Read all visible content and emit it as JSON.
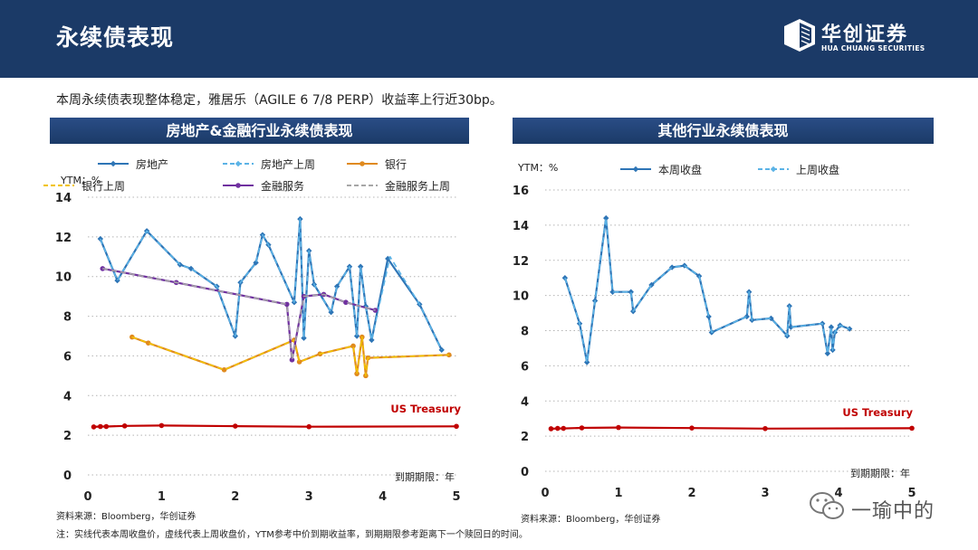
{
  "header": {
    "title": "永续债表现",
    "logo_cn": "华创证券",
    "logo_en": "HUA CHUANG SECURITIES"
  },
  "summary": "本周永续债表现整体稳定，雅居乐（AGILE 6 7/8 PERP）收益率上行近30bp。",
  "left_panel": {
    "title": "房地产&金融行业永续债表现"
  },
  "right_panel": {
    "title": "其他行业永续债表现"
  },
  "left_source": "资料来源：Bloomberg，华创证券",
  "right_source": "资料来源：Bloomberg，华创证券",
  "note": "注：实线代表本周收盘价，虚线代表上周收盘价，YTM参考中价到期收益率，到期期限参考距离下一个赎回日的时间。",
  "watermark": "一瑜中的",
  "colors": {
    "header_bg": "#1b3a67",
    "blue": "#2e75b6",
    "light_blue": "#5bb3e6",
    "orange": "#e08a1e",
    "yellow": "#f2c300",
    "purple": "#7030a0",
    "gray_dash": "#a6a6a6",
    "red": "#c00000",
    "grid": "#b4b4b4"
  },
  "chart_data": [
    {
      "type": "line",
      "title": "房地产&金融行业永续债表现",
      "ylabel": "YTM：%",
      "xlabel": "到期期限：年",
      "xlim": [
        0,
        5
      ],
      "ylim": [
        0,
        14
      ],
      "xticks": [
        0,
        1,
        2,
        3,
        4,
        5
      ],
      "yticks": [
        0,
        2,
        4,
        6,
        8,
        10,
        12,
        14
      ],
      "annotation": "US Treasury",
      "legend": [
        "房地产",
        "房地产上周",
        "银行",
        "银行上周",
        "金融服务",
        "金融服务上周"
      ],
      "series": [
        {
          "name": "房地产",
          "style": "solid",
          "color": "#2e75b6",
          "marker": "diamond",
          "x": [
            0.17,
            0.4,
            0.8,
            1.25,
            1.4,
            1.75,
            2.0,
            2.07,
            2.28,
            2.37,
            2.45,
            2.8,
            2.88,
            2.93,
            3.0,
            3.07,
            3.3,
            3.38,
            3.55,
            3.65,
            3.7,
            3.77,
            3.85,
            4.07,
            4.5,
            4.8
          ],
          "y": [
            11.9,
            9.8,
            12.3,
            10.6,
            10.4,
            9.5,
            7.0,
            9.7,
            10.7,
            12.1,
            11.6,
            8.7,
            12.9,
            6.9,
            11.3,
            9.6,
            8.2,
            9.5,
            10.5,
            7.0,
            10.5,
            8.5,
            6.8,
            10.9,
            8.6,
            6.3
          ]
        },
        {
          "name": "房地产上周",
          "style": "dash",
          "color": "#5bb3e6",
          "marker": "diamond",
          "x": [
            0.17,
            0.4,
            0.8,
            1.25,
            1.4,
            1.75,
            2.0,
            2.07,
            2.28,
            2.37,
            2.45,
            2.8,
            2.88,
            2.93,
            3.0,
            3.07,
            3.3,
            3.38,
            3.55,
            3.65,
            3.7,
            3.77,
            3.85,
            4.1,
            4.5,
            4.8
          ],
          "y": [
            11.9,
            9.8,
            12.3,
            10.6,
            10.4,
            9.5,
            7.0,
            9.7,
            10.7,
            12.1,
            11.6,
            8.7,
            12.9,
            6.9,
            11.3,
            9.6,
            8.2,
            9.5,
            10.5,
            7.0,
            10.5,
            8.5,
            6.8,
            11.0,
            8.6,
            6.3
          ]
        },
        {
          "name": "银行",
          "style": "solid",
          "color": "#e08a1e",
          "marker": "circle",
          "x": [
            0.6,
            0.82,
            1.85,
            2.8,
            2.87,
            3.15,
            3.6,
            3.65,
            3.72,
            3.77,
            3.8,
            4.9
          ],
          "y": [
            6.95,
            6.65,
            5.3,
            6.8,
            5.7,
            6.1,
            6.5,
            5.1,
            6.95,
            5.0,
            5.9,
            6.05
          ]
        },
        {
          "name": "银行上周",
          "style": "dash",
          "color": "#f2c300",
          "marker": "none",
          "x": [
            0.6,
            0.82,
            1.85,
            2.8,
            2.87,
            3.15,
            3.6,
            3.65,
            3.72,
            3.77,
            3.8,
            4.9
          ],
          "y": [
            6.95,
            6.65,
            5.3,
            6.8,
            5.7,
            6.1,
            6.5,
            5.1,
            6.95,
            5.0,
            5.9,
            6.05
          ]
        },
        {
          "name": "金融服务",
          "style": "solid",
          "color": "#7030a0",
          "marker": "circle",
          "x": [
            0.2,
            1.2,
            2.7,
            2.77,
            2.93,
            3.2,
            3.5,
            3.9
          ],
          "y": [
            10.4,
            9.7,
            8.6,
            5.8,
            9.0,
            9.1,
            8.7,
            8.3
          ]
        },
        {
          "name": "金融服务上周",
          "style": "dash",
          "color": "#a6a6a6",
          "marker": "none",
          "x": [
            0.2,
            1.2,
            2.7,
            2.77,
            2.93,
            3.2,
            3.5,
            3.9
          ],
          "y": [
            10.4,
            9.7,
            8.6,
            5.8,
            9.0,
            9.1,
            8.7,
            8.3
          ]
        },
        {
          "name": "US Treasury",
          "style": "solid",
          "color": "#c00000",
          "marker": "circle",
          "x": [
            0.08,
            0.17,
            0.25,
            0.5,
            1.0,
            2.0,
            3.0,
            5.0
          ],
          "y": [
            2.42,
            2.44,
            2.44,
            2.47,
            2.49,
            2.46,
            2.43,
            2.45
          ]
        }
      ]
    },
    {
      "type": "line",
      "title": "其他行业永续债表现",
      "ylabel": "YTM：%",
      "xlabel": "到期期限：年",
      "xlim": [
        0,
        5
      ],
      "ylim": [
        0,
        16
      ],
      "xticks": [
        0,
        1,
        2,
        3,
        4,
        5
      ],
      "yticks": [
        0,
        2,
        4,
        6,
        8,
        10,
        12,
        14,
        16
      ],
      "annotation": "US Treasury",
      "legend": [
        "本周收盘",
        "上周收盘"
      ],
      "series": [
        {
          "name": "本周收盘",
          "style": "solid",
          "color": "#2e75b6",
          "marker": "diamond",
          "x": [
            0.27,
            0.47,
            0.57,
            0.68,
            0.83,
            0.92,
            1.17,
            1.2,
            1.45,
            1.73,
            1.9,
            2.1,
            2.23,
            2.27,
            2.75,
            2.78,
            2.82,
            3.08,
            3.3,
            3.33,
            3.35,
            3.78,
            3.85,
            3.9,
            3.92,
            3.95,
            4.02,
            4.15
          ],
          "y": [
            11.0,
            8.4,
            6.2,
            9.7,
            14.4,
            10.2,
            10.2,
            9.1,
            10.6,
            11.6,
            11.7,
            11.1,
            8.8,
            7.9,
            8.8,
            10.2,
            8.6,
            8.7,
            7.7,
            9.4,
            8.2,
            8.4,
            6.7,
            8.2,
            6.9,
            7.9,
            8.3,
            8.1
          ]
        },
        {
          "name": "上周收盘",
          "style": "dash",
          "color": "#5bb3e6",
          "marker": "diamond",
          "x": [
            0.27,
            0.47,
            0.57,
            0.68,
            0.83,
            0.92,
            1.17,
            1.2,
            1.45,
            1.73,
            1.9,
            2.1,
            2.23,
            2.27,
            2.75,
            2.78,
            2.82,
            3.08,
            3.3,
            3.33,
            3.35,
            3.78,
            3.85,
            3.9,
            3.92,
            3.95,
            4.02,
            4.15
          ],
          "y": [
            11.0,
            8.4,
            6.2,
            9.7,
            14.4,
            10.2,
            10.2,
            9.1,
            10.6,
            11.6,
            11.7,
            11.1,
            8.8,
            7.9,
            8.8,
            10.2,
            8.6,
            8.7,
            7.7,
            9.4,
            8.2,
            8.4,
            6.7,
            8.2,
            6.9,
            7.9,
            8.3,
            8.1
          ]
        },
        {
          "name": "US Treasury",
          "style": "solid",
          "color": "#c00000",
          "marker": "circle",
          "x": [
            0.08,
            0.17,
            0.25,
            0.5,
            1.0,
            2.0,
            3.0,
            5.0
          ],
          "y": [
            2.42,
            2.44,
            2.44,
            2.47,
            2.49,
            2.46,
            2.43,
            2.45
          ]
        }
      ]
    }
  ]
}
